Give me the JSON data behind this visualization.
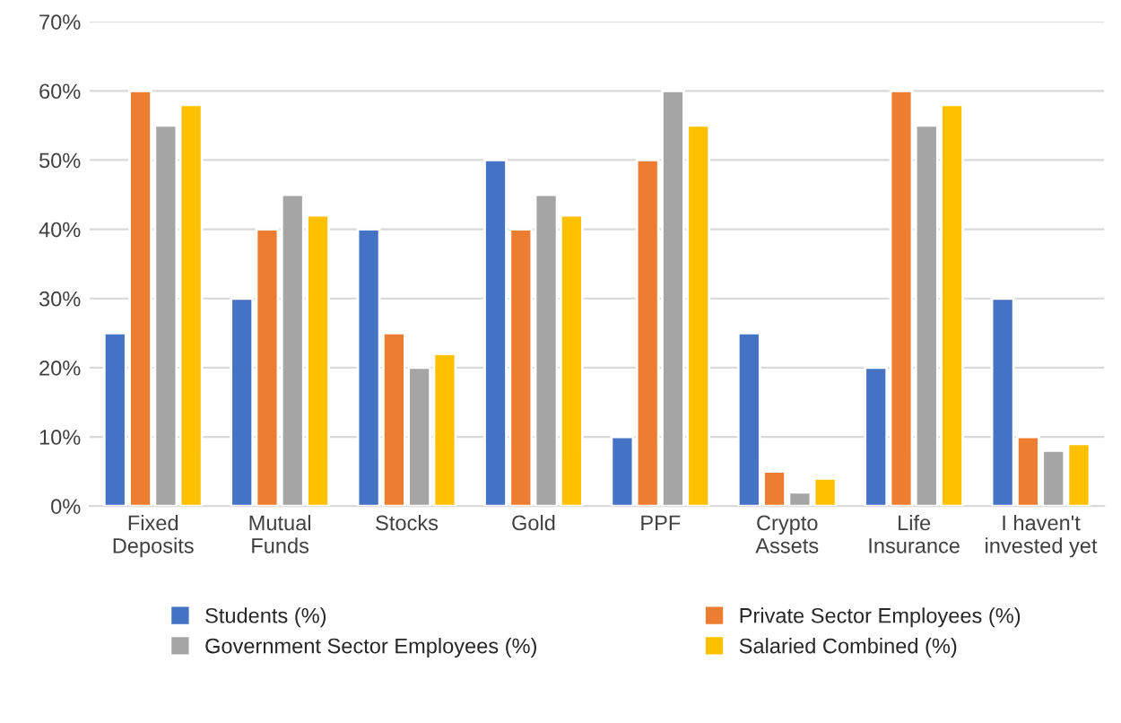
{
  "chart_data": {
    "type": "bar",
    "categories": [
      "Fixed\nDeposits",
      "Mutual\nFunds",
      "Stocks",
      "Gold",
      "PPF",
      "Crypto\nAssets",
      "Life\nInsurance",
      "I haven't\ninvested yet"
    ],
    "series": [
      {
        "name": "Students (%)",
        "color": "#4472c4",
        "values": [
          25,
          30,
          40,
          50,
          10,
          25,
          20,
          30
        ]
      },
      {
        "name": "Private Sector Employees (%)",
        "color": "#ed7d31",
        "values": [
          60,
          40,
          25,
          40,
          50,
          5,
          60,
          10
        ]
      },
      {
        "name": "Government Sector Employees (%)",
        "color": "#a5a5a5",
        "values": [
          55,
          45,
          20,
          45,
          60,
          2,
          55,
          8
        ]
      },
      {
        "name": "Salaried Combined (%)",
        "color": "#ffc000",
        "values": [
          58,
          42,
          22,
          42,
          55,
          4,
          58,
          9
        ]
      }
    ],
    "ylim": [
      0,
      70
    ],
    "yticks": [
      {
        "value": 0,
        "label": "0%"
      },
      {
        "value": 10,
        "label": "10%"
      },
      {
        "value": 20,
        "label": "20%"
      },
      {
        "value": 30,
        "label": "30%"
      },
      {
        "value": 40,
        "label": "40%"
      },
      {
        "value": 50,
        "label": "50%"
      },
      {
        "value": 60,
        "label": "60%"
      },
      {
        "value": 70,
        "label": "70%"
      }
    ],
    "grid": "y",
    "legend": "bottom"
  }
}
